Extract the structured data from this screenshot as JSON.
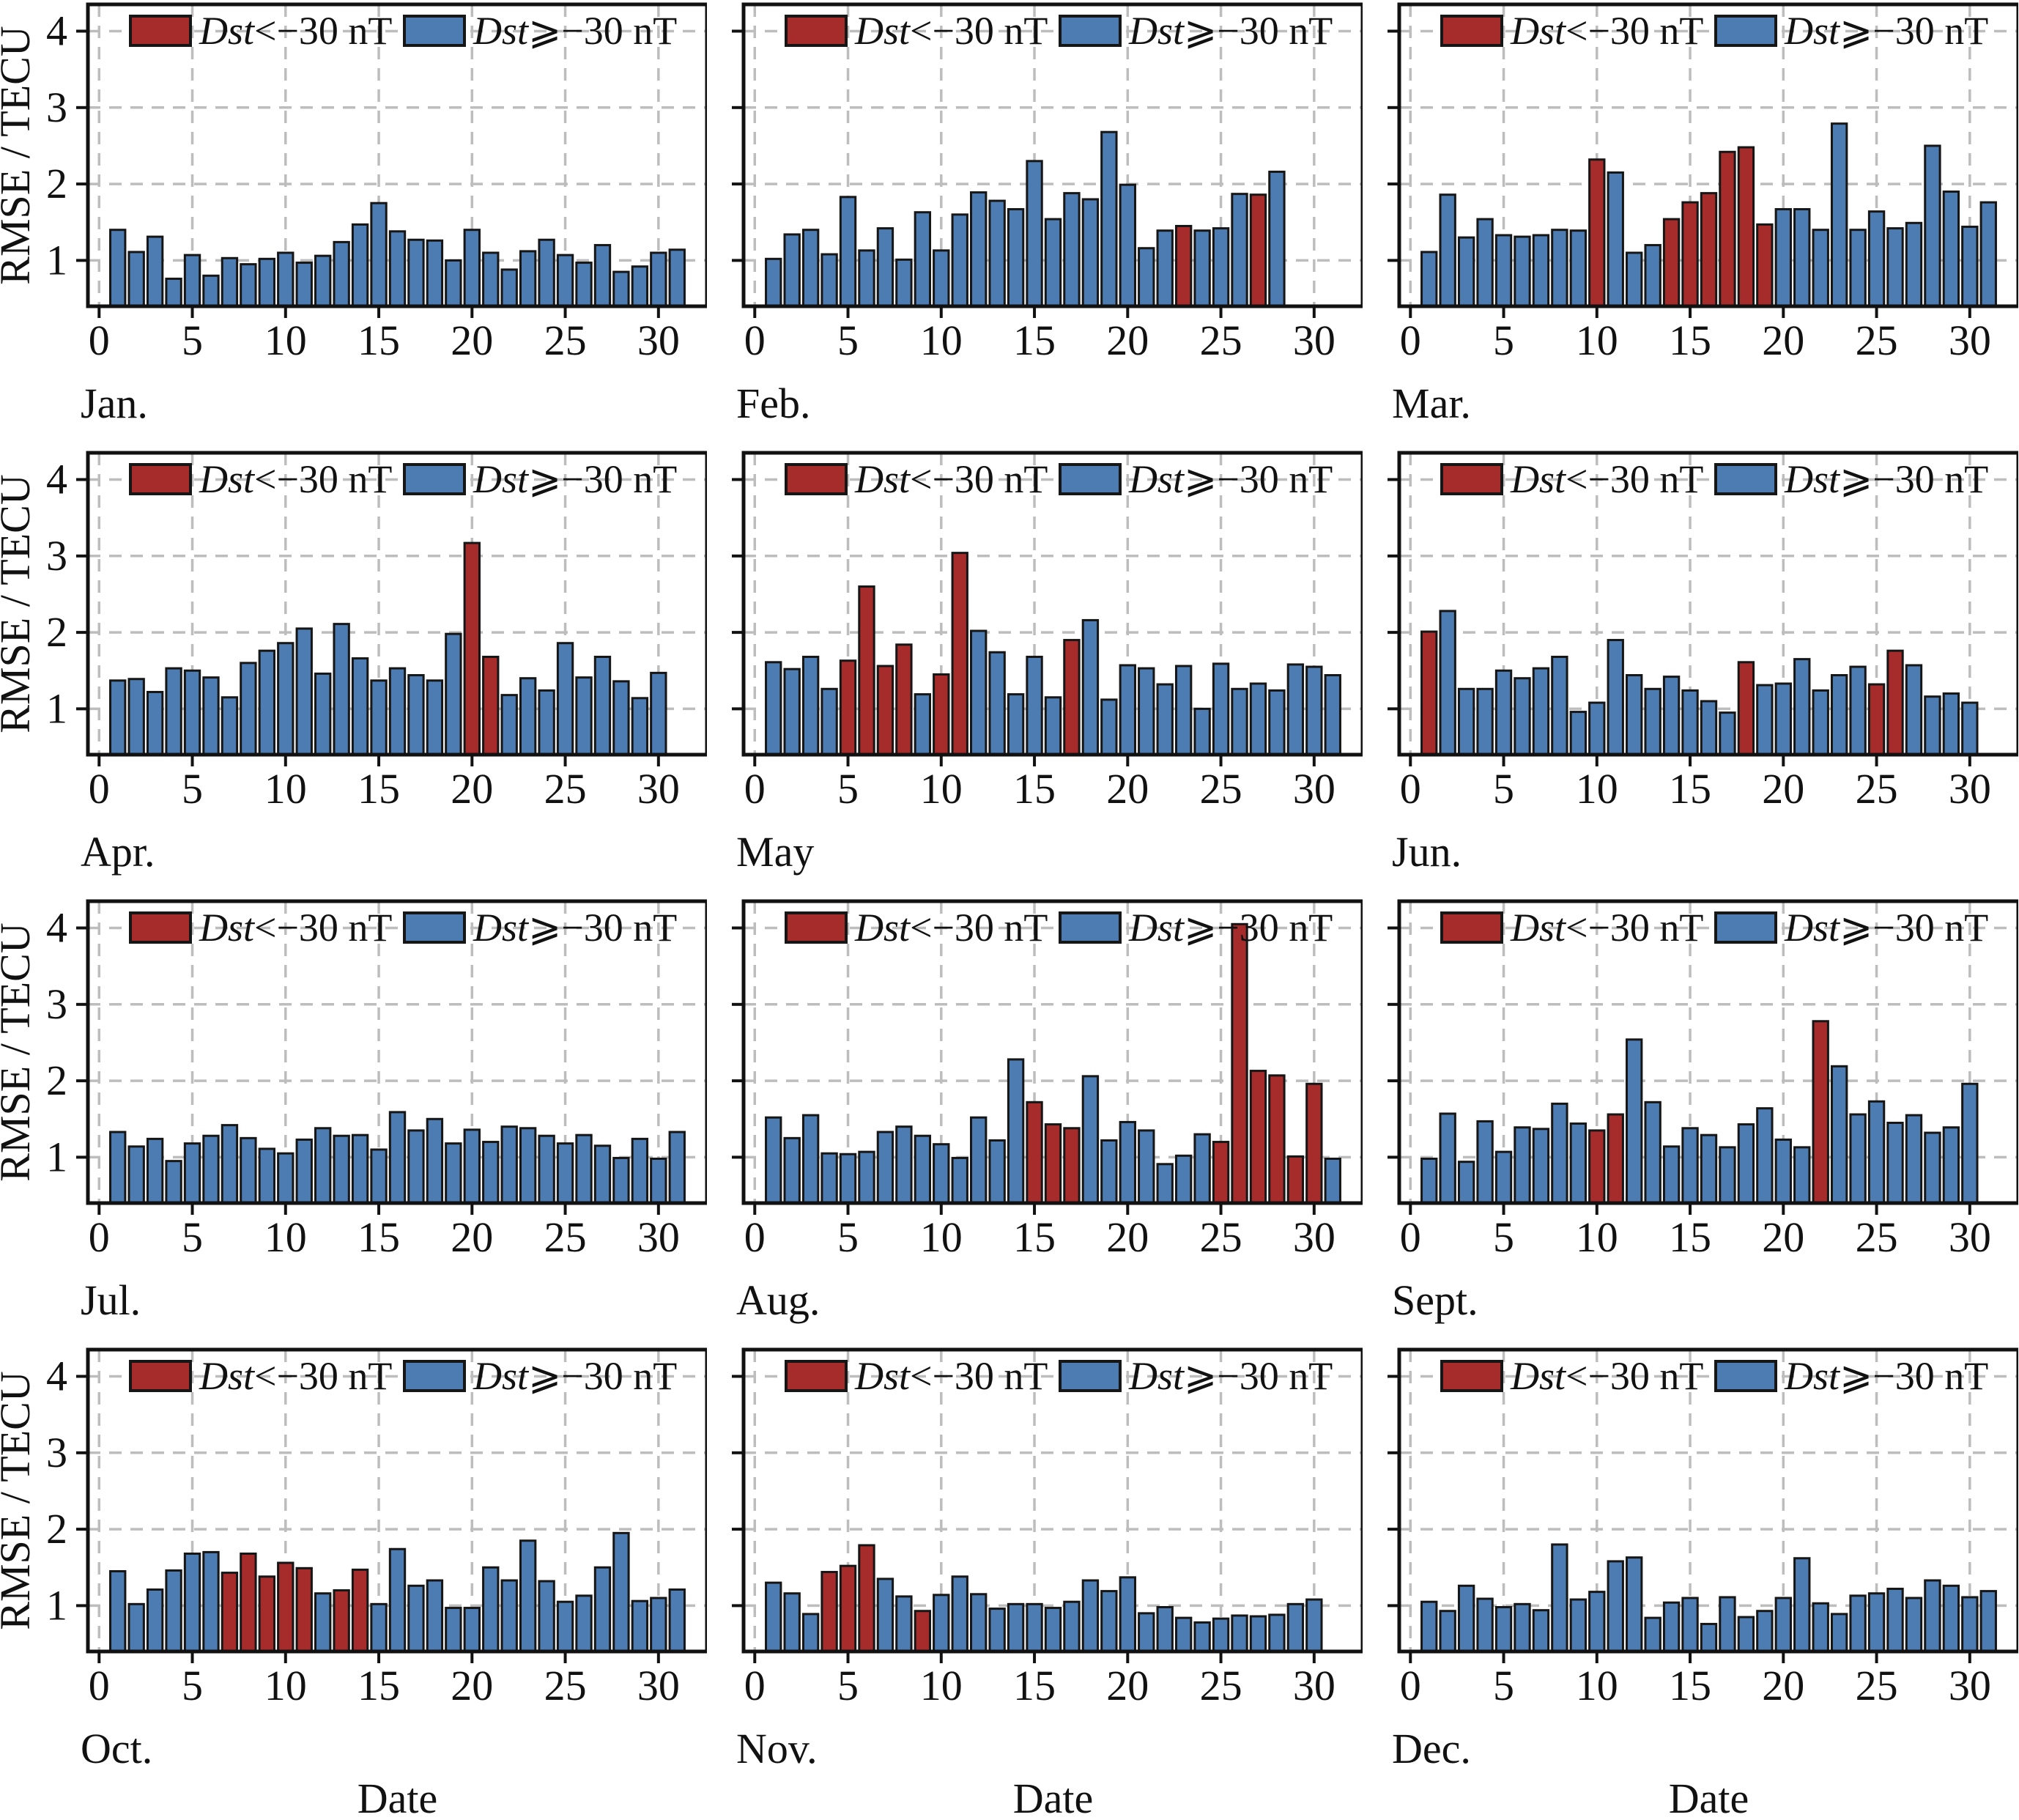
{
  "figure": {
    "ylabel": "RMSE / TECU",
    "xlabel": "Date",
    "yticks": [
      1,
      2,
      3,
      4
    ],
    "xticks": [
      0,
      5,
      10,
      15,
      20,
      25,
      30
    ],
    "ylim": [
      0.4,
      4.35
    ],
    "xlim": [
      -0.6,
      32.6
    ],
    "grid": "dashed",
    "colors": {
      "storm": "#a62c2c",
      "quiet": "#4d7cb2",
      "edge": "#161616",
      "grid": "#bdbdbd",
      "spine": "#111111"
    },
    "legend": [
      {
        "series": "storm",
        "label_italic": "Dst",
        "label_rest": "<−30 nT"
      },
      {
        "series": "quiet",
        "label_italic": "Dst",
        "label_rest": "⩾−30 nT"
      }
    ]
  },
  "chart_data": [
    {
      "type": "bar",
      "month": "Jan.",
      "storm_days": [],
      "values": [
        1.4,
        1.11,
        1.31,
        0.76,
        1.07,
        0.8,
        1.03,
        0.95,
        1.02,
        1.1,
        0.97,
        1.06,
        1.24,
        1.47,
        1.75,
        1.38,
        1.27,
        1.26,
        1.0,
        1.4,
        1.1,
        0.88,
        1.12,
        1.27,
        1.07,
        0.97,
        1.2,
        0.85,
        0.92,
        1.1,
        1.14
      ]
    },
    {
      "type": "bar",
      "month": "Feb.",
      "storm_days": [
        23,
        27
      ],
      "values": [
        1.02,
        1.34,
        1.4,
        1.08,
        1.83,
        1.13,
        1.42,
        1.01,
        1.63,
        1.13,
        1.6,
        1.89,
        1.78,
        1.67,
        2.3,
        1.54,
        1.88,
        1.8,
        2.68,
        1.99,
        1.16,
        1.39,
        1.45,
        1.39,
        1.42,
        1.87,
        1.86,
        2.16
      ]
    },
    {
      "type": "bar",
      "month": "Mar.",
      "storm_days": [
        10,
        14,
        15,
        16,
        17,
        18,
        19
      ],
      "values": [
        1.11,
        1.86,
        1.3,
        1.54,
        1.33,
        1.31,
        1.33,
        1.4,
        1.39,
        2.32,
        2.15,
        1.1,
        1.2,
        1.54,
        1.76,
        1.88,
        2.42,
        2.48,
        1.47,
        1.67,
        1.67,
        1.4,
        2.79,
        1.4,
        1.64,
        1.42,
        1.49,
        2.5,
        1.9,
        1.44,
        1.76
      ]
    },
    {
      "type": "bar",
      "month": "Apr.",
      "storm_days": [
        20,
        21
      ],
      "values": [
        1.37,
        1.39,
        1.22,
        1.53,
        1.5,
        1.41,
        1.15,
        1.6,
        1.76,
        1.86,
        2.05,
        1.46,
        2.11,
        1.66,
        1.37,
        1.53,
        1.44,
        1.37,
        1.98,
        3.17,
        1.68,
        1.18,
        1.4,
        1.24,
        1.86,
        1.41,
        1.68,
        1.36,
        1.14,
        1.47
      ]
    },
    {
      "type": "bar",
      "month": "May",
      "storm_days": [
        5,
        6,
        7,
        8,
        10,
        11,
        17
      ],
      "values": [
        1.61,
        1.52,
        1.68,
        1.26,
        1.63,
        2.6,
        1.56,
        1.84,
        1.19,
        1.45,
        3.04,
        2.02,
        1.74,
        1.19,
        1.68,
        1.15,
        1.9,
        2.16,
        1.12,
        1.57,
        1.53,
        1.32,
        1.56,
        1.0,
        1.59,
        1.26,
        1.33,
        1.24,
        1.58,
        1.55,
        1.44
      ]
    },
    {
      "type": "bar",
      "month": "Jun.",
      "storm_days": [
        1,
        18,
        25,
        26
      ],
      "values": [
        2.01,
        2.28,
        1.26,
        1.26,
        1.5,
        1.4,
        1.53,
        1.68,
        0.96,
        1.08,
        1.9,
        1.44,
        1.26,
        1.42,
        1.24,
        1.1,
        0.95,
        1.61,
        1.31,
        1.33,
        1.65,
        1.24,
        1.44,
        1.55,
        1.32,
        1.76,
        1.57,
        1.16,
        1.2,
        1.08
      ]
    },
    {
      "type": "bar",
      "month": "Jul.",
      "storm_days": [],
      "values": [
        1.33,
        1.14,
        1.24,
        0.95,
        1.18,
        1.28,
        1.42,
        1.25,
        1.11,
        1.05,
        1.23,
        1.38,
        1.28,
        1.29,
        1.1,
        1.59,
        1.35,
        1.5,
        1.18,
        1.36,
        1.2,
        1.4,
        1.38,
        1.28,
        1.18,
        1.29,
        1.15,
        0.99,
        1.24,
        0.98,
        1.33
      ]
    },
    {
      "type": "bar",
      "month": "Aug.",
      "storm_days": [
        15,
        16,
        17,
        25,
        26,
        27,
        28,
        29,
        30
      ],
      "values": [
        1.52,
        1.25,
        1.55,
        1.05,
        1.04,
        1.07,
        1.33,
        1.4,
        1.28,
        1.17,
        0.99,
        1.52,
        1.22,
        2.28,
        1.72,
        1.43,
        1.38,
        2.06,
        1.22,
        1.46,
        1.35,
        0.91,
        1.02,
        1.3,
        1.2,
        4.05,
        2.13,
        2.07,
        1.01,
        1.96,
        0.98
      ]
    },
    {
      "type": "bar",
      "month": "Sept.",
      "storm_days": [
        10,
        11,
        22
      ],
      "values": [
        0.98,
        1.57,
        0.94,
        1.47,
        1.07,
        1.39,
        1.37,
        1.7,
        1.44,
        1.35,
        1.56,
        2.54,
        1.72,
        1.14,
        1.38,
        1.29,
        1.13,
        1.43,
        1.64,
        1.23,
        1.13,
        2.78,
        2.19,
        1.56,
        1.73,
        1.45,
        1.55,
        1.32,
        1.39,
        1.96
      ]
    },
    {
      "type": "bar",
      "month": "Oct.",
      "storm_days": [
        7,
        8,
        9,
        10,
        11,
        13,
        14
      ],
      "values": [
        1.45,
        1.02,
        1.21,
        1.46,
        1.68,
        1.7,
        1.43,
        1.68,
        1.38,
        1.56,
        1.49,
        1.16,
        1.2,
        1.47,
        1.02,
        1.74,
        1.26,
        1.33,
        0.97,
        0.97,
        1.5,
        1.33,
        1.85,
        1.32,
        1.05,
        1.13,
        1.5,
        1.95,
        1.06,
        1.1,
        1.21
      ]
    },
    {
      "type": "bar",
      "month": "Nov.",
      "storm_days": [
        4,
        5,
        6,
        9
      ],
      "values": [
        1.3,
        1.16,
        0.89,
        1.44,
        1.52,
        1.79,
        1.35,
        1.12,
        0.93,
        1.14,
        1.38,
        1.15,
        0.96,
        1.02,
        1.02,
        0.97,
        1.05,
        1.33,
        1.19,
        1.37,
        0.9,
        0.98,
        0.84,
        0.78,
        0.83,
        0.87,
        0.86,
        0.88,
        1.02,
        1.08
      ]
    },
    {
      "type": "bar",
      "month": "Dec.",
      "storm_days": [],
      "values": [
        1.05,
        0.93,
        1.26,
        1.09,
        0.98,
        1.02,
        0.94,
        1.8,
        1.08,
        1.18,
        1.58,
        1.63,
        0.84,
        1.04,
        1.1,
        0.76,
        1.11,
        0.85,
        0.93,
        1.1,
        1.62,
        1.03,
        0.89,
        1.13,
        1.16,
        1.22,
        1.1,
        1.33,
        1.26,
        1.11,
        1.19
      ]
    }
  ]
}
